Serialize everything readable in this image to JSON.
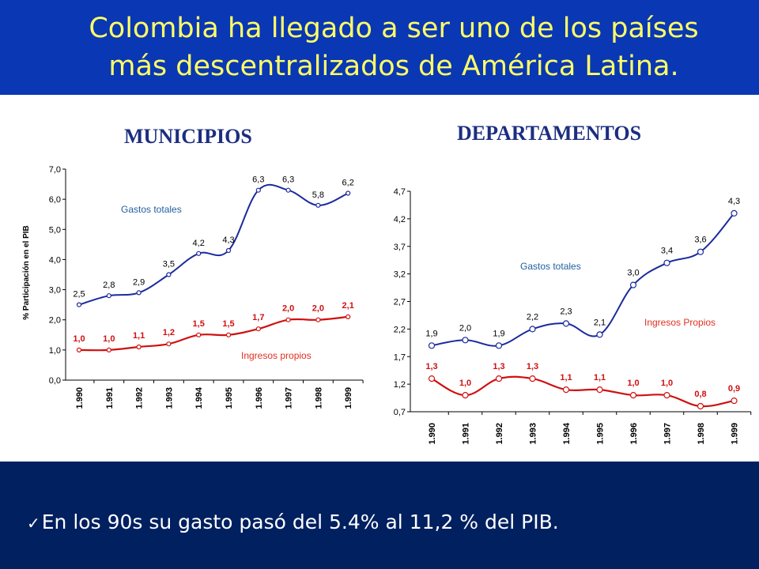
{
  "header": {
    "title_line1": "Colombia ha llegado a ser uno de los países",
    "title_line2": "más descentralizados de América Latina."
  },
  "footer": {
    "bullet_icon": "check-icon",
    "bullet_text": "En los 90s su gasto pasó del 5.4% al 11,2 % del PIB."
  },
  "colors": {
    "header_bg": "#0a37b4",
    "title": "#ffff66",
    "footer_bg": "#002060",
    "gastos": "#1a2a9c",
    "ingresos": "#d01010"
  },
  "chart_data": [
    {
      "type": "line",
      "title": "MUNICIPIOS",
      "ylabel": "% Participación en el PIB",
      "categories": [
        "1.990",
        "1.991",
        "1.992",
        "1.993",
        "1.994",
        "1.995",
        "1.996",
        "1.997",
        "1.998",
        "1.999"
      ],
      "ylim": [
        0,
        7
      ],
      "yticks": [
        "0,0",
        "1,0",
        "2,0",
        "3,0",
        "4,0",
        "5,0",
        "6,0",
        "7,0"
      ],
      "series": [
        {
          "name": "Gastos totales",
          "values": [
            2.5,
            2.8,
            2.9,
            3.5,
            4.2,
            4.3,
            6.3,
            6.3,
            5.8,
            6.2
          ],
          "labels": [
            "2,5",
            "2,8",
            "2,9",
            "3,5",
            "4,2",
            "4,3",
            "6,3",
            "6,3",
            "5,8",
            "6,2"
          ]
        },
        {
          "name": "Ingresos propios",
          "values": [
            1.0,
            1.0,
            1.1,
            1.2,
            1.5,
            1.5,
            1.7,
            2.0,
            2.0,
            2.1
          ],
          "labels": [
            "1,0",
            "1,0",
            "1,1",
            "1,2",
            "1,5",
            "1,5",
            "1,7",
            "2,0",
            "2,0",
            "2,1"
          ]
        }
      ],
      "grid": false
    },
    {
      "type": "line",
      "title": "DEPARTAMENTOS",
      "categories": [
        "1.990",
        "1.991",
        "1.992",
        "1.993",
        "1.994",
        "1.995",
        "1.996",
        "1.997",
        "1.998",
        "1.999"
      ],
      "ylim": [
        0.7,
        4.7
      ],
      "yticks": [
        "0,7",
        "1,2",
        "1,7",
        "2,2",
        "2,7",
        "3,2",
        "3,7",
        "4,2",
        "4,7"
      ],
      "series": [
        {
          "name": "Gastos totales",
          "values": [
            1.9,
            2.0,
            1.9,
            2.2,
            2.3,
            2.1,
            3.0,
            3.4,
            3.6,
            4.3
          ],
          "labels": [
            "1,9",
            "2,0",
            "1,9",
            "2,2",
            "2,3",
            "2,1",
            "3,0",
            "3,4",
            "3,6",
            "4,3"
          ]
        },
        {
          "name": "Ingresos Propios",
          "values": [
            1.3,
            1.0,
            1.3,
            1.3,
            1.1,
            1.1,
            1.0,
            1.0,
            0.8,
            0.9
          ],
          "labels": [
            "1,3",
            "1,0",
            "1,3",
            "1,3",
            "1,1",
            "1,1",
            "1,0",
            "1,0",
            "0,8",
            "0,9"
          ]
        }
      ],
      "grid": false
    }
  ]
}
